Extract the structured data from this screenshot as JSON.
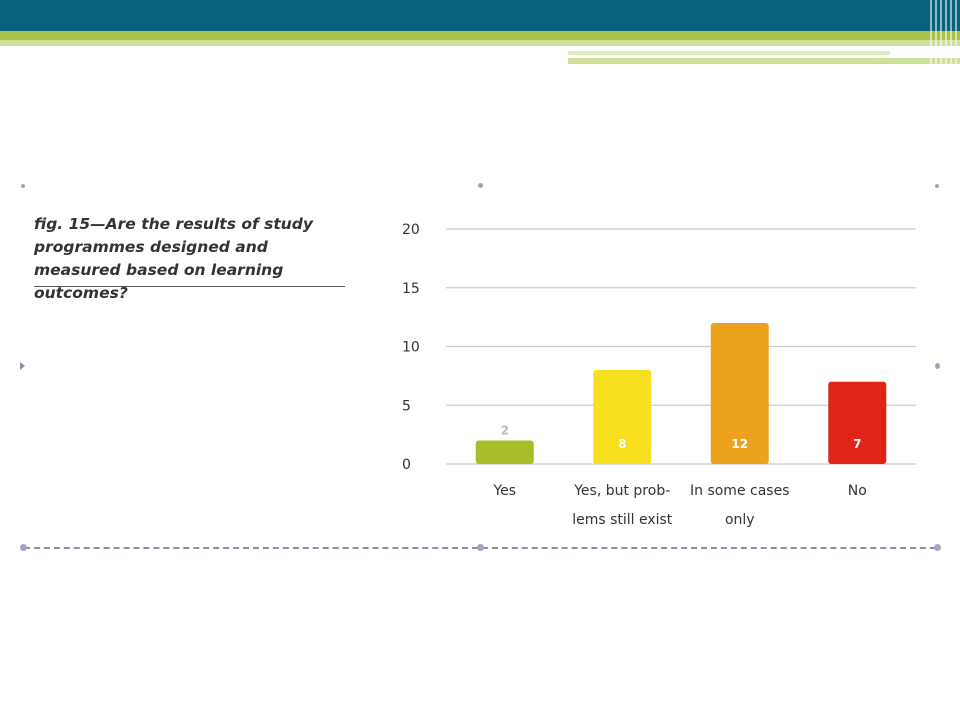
{
  "figure": {
    "title": "fig. 15—Are the results of study programmes designed and measured based on learning outcomes?"
  },
  "chart_data": {
    "type": "bar",
    "title": "fig. 15—Are the results of study programmes designed and measured based on learning outcomes?",
    "categories": [
      [
        "Yes"
      ],
      [
        "Yes, but prob-",
        "lems still exist"
      ],
      [
        "In some cases",
        "only"
      ],
      [
        "No"
      ]
    ],
    "values": [
      2,
      8,
      12,
      7
    ],
    "data_labels": [
      "2",
      "8",
      "12",
      "7"
    ],
    "colors": [
      "#a9bd2a",
      "#f7df20",
      "#eda21d",
      "#df2418"
    ],
    "label_colors": [
      "#bcbcbc",
      "#ffffff",
      "#ffffff",
      "#ffffff"
    ],
    "yticks": [
      "0",
      "5",
      "10",
      "15",
      "20"
    ],
    "ylim": [
      0,
      20
    ],
    "grid": true,
    "xlabel": "",
    "ylabel": ""
  }
}
